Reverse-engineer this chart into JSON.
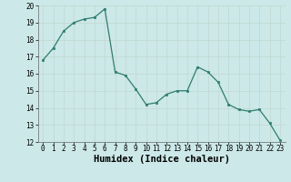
{
  "x": [
    0,
    1,
    2,
    3,
    4,
    5,
    6,
    7,
    8,
    9,
    10,
    11,
    12,
    13,
    14,
    15,
    16,
    17,
    18,
    19,
    20,
    21,
    22,
    23
  ],
  "y": [
    16.8,
    17.5,
    18.5,
    19.0,
    19.2,
    19.3,
    19.8,
    16.1,
    15.9,
    15.1,
    14.2,
    14.3,
    14.8,
    15.0,
    15.0,
    16.4,
    16.1,
    15.5,
    14.2,
    13.9,
    13.8,
    13.9,
    13.1,
    12.1
  ],
  "xlabel": "Humidex (Indice chaleur)",
  "xlim": [
    -0.5,
    23.5
  ],
  "ylim": [
    12,
    20
  ],
  "yticks": [
    12,
    13,
    14,
    15,
    16,
    17,
    18,
    19,
    20
  ],
  "xticks": [
    0,
    1,
    2,
    3,
    4,
    5,
    6,
    7,
    8,
    9,
    10,
    11,
    12,
    13,
    14,
    15,
    16,
    17,
    18,
    19,
    20,
    21,
    22,
    23
  ],
  "line_color": "#2e7d6e",
  "marker_color": "#2e7d6e",
  "bg_color": "#cce8e8",
  "grid_color": "#c0d8d0",
  "tick_label_fontsize": 5.5,
  "xlabel_fontsize": 7.5
}
